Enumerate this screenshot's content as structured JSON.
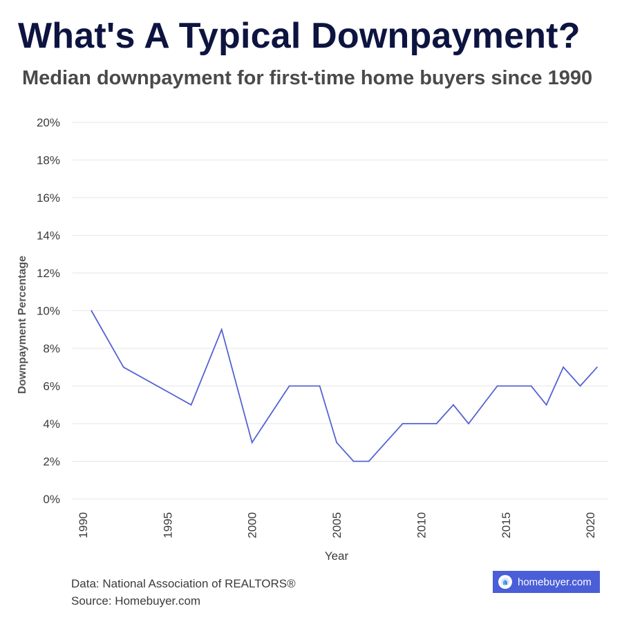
{
  "header": {
    "title": "What's A Typical Downpayment?",
    "subtitle": "Median downpayment for first-time home buyers since 1990"
  },
  "footer": {
    "data_line": "Data: National Association of REALTORS®",
    "source_line": "Source: Homebuyer.com"
  },
  "badge": {
    "text": "homebuyer.com",
    "background_color": "#4a5ed8",
    "icon": "house-logo-icon"
  },
  "colors": {
    "title": "#0d1440",
    "line": "#5462d2",
    "grid": "#e6e6e6"
  },
  "chart_data": {
    "type": "line",
    "title": "",
    "xlabel": "Year",
    "ylabel": "Downpayment Percentage",
    "xlim": [
      1990,
      2020.4
    ],
    "ylim": [
      0,
      20
    ],
    "x_ticks": [
      1990,
      1995,
      2000,
      2005,
      2010,
      2015,
      2020
    ],
    "y_ticks": [
      0,
      2,
      4,
      6,
      8,
      10,
      12,
      14,
      16,
      18,
      20
    ],
    "y_tick_labels": [
      "0%",
      "2%",
      "4%",
      "6%",
      "8%",
      "10%",
      "12%",
      "14%",
      "16%",
      "18%",
      "20%"
    ],
    "grid": "horizontal",
    "series": [
      {
        "x": [
          1990.5,
          1992.4,
          1996.4,
          1998.2,
          2000.0,
          2002.2,
          2004.0,
          2005.0,
          2006.0,
          2006.9,
          2008.9,
          2010.9,
          2011.9,
          2012.8,
          2014.5,
          2016.5,
          2017.4,
          2018.4,
          2019.4,
          2020.4
        ],
        "y": [
          10,
          7,
          5,
          9,
          3,
          6,
          6,
          3,
          2,
          2,
          4,
          4,
          5,
          4,
          6,
          6,
          5,
          7,
          6,
          7
        ]
      }
    ]
  }
}
